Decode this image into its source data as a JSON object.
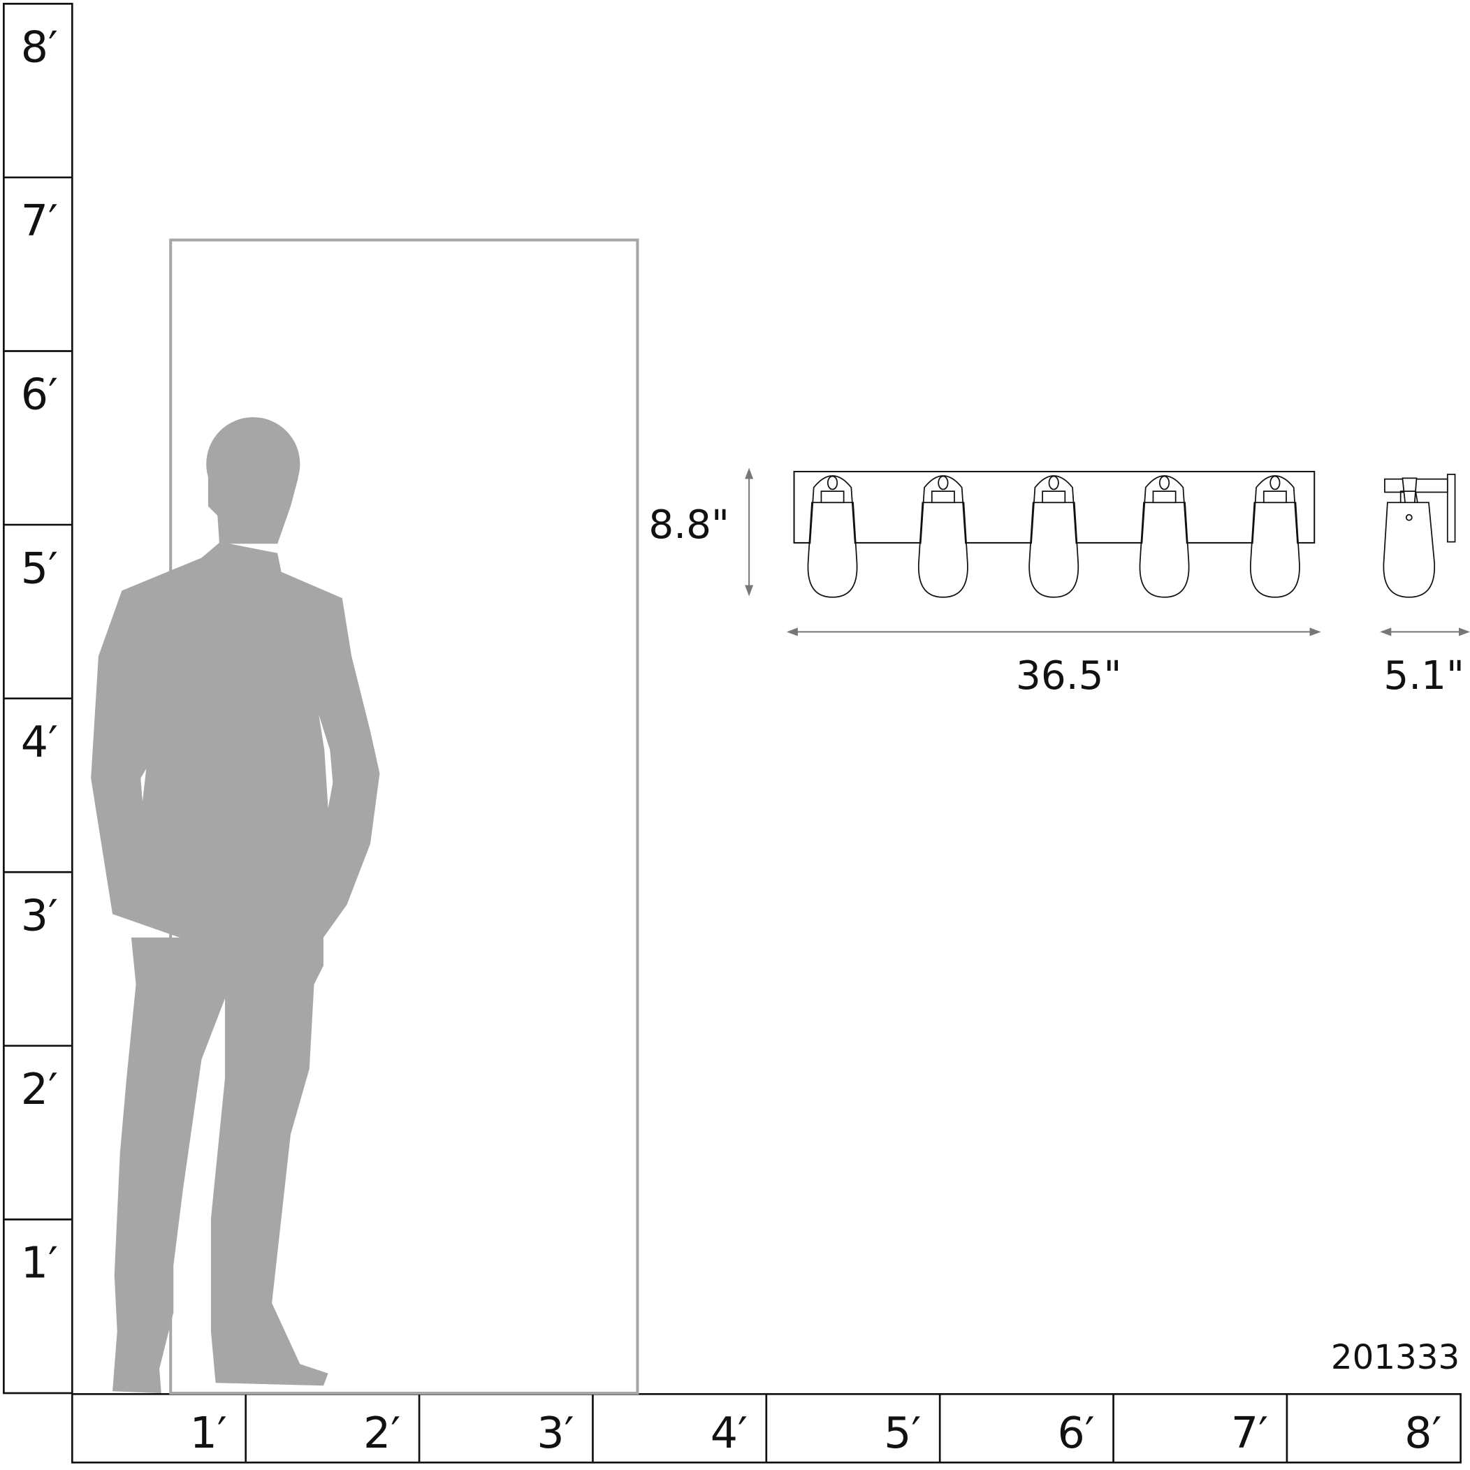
{
  "vertical_ruler": {
    "labels": [
      "8′",
      "7′",
      "6′",
      "5′",
      "4′",
      "3′",
      "2′",
      "1′"
    ]
  },
  "horizontal_ruler": {
    "labels": [
      "1′",
      "2′",
      "3′",
      "4′",
      "5′",
      "6′",
      "7′",
      "8′"
    ]
  },
  "dimensions": {
    "height": "8.8\"",
    "width": "36.5\"",
    "depth": "5.1\""
  },
  "product_id": "201333",
  "colors": {
    "silhouette": "#a6a6a6",
    "door": "#a6a6a6",
    "ruler": "#111111",
    "dimension_arrow": "#777777"
  },
  "fixture": {
    "light_count": 5
  }
}
